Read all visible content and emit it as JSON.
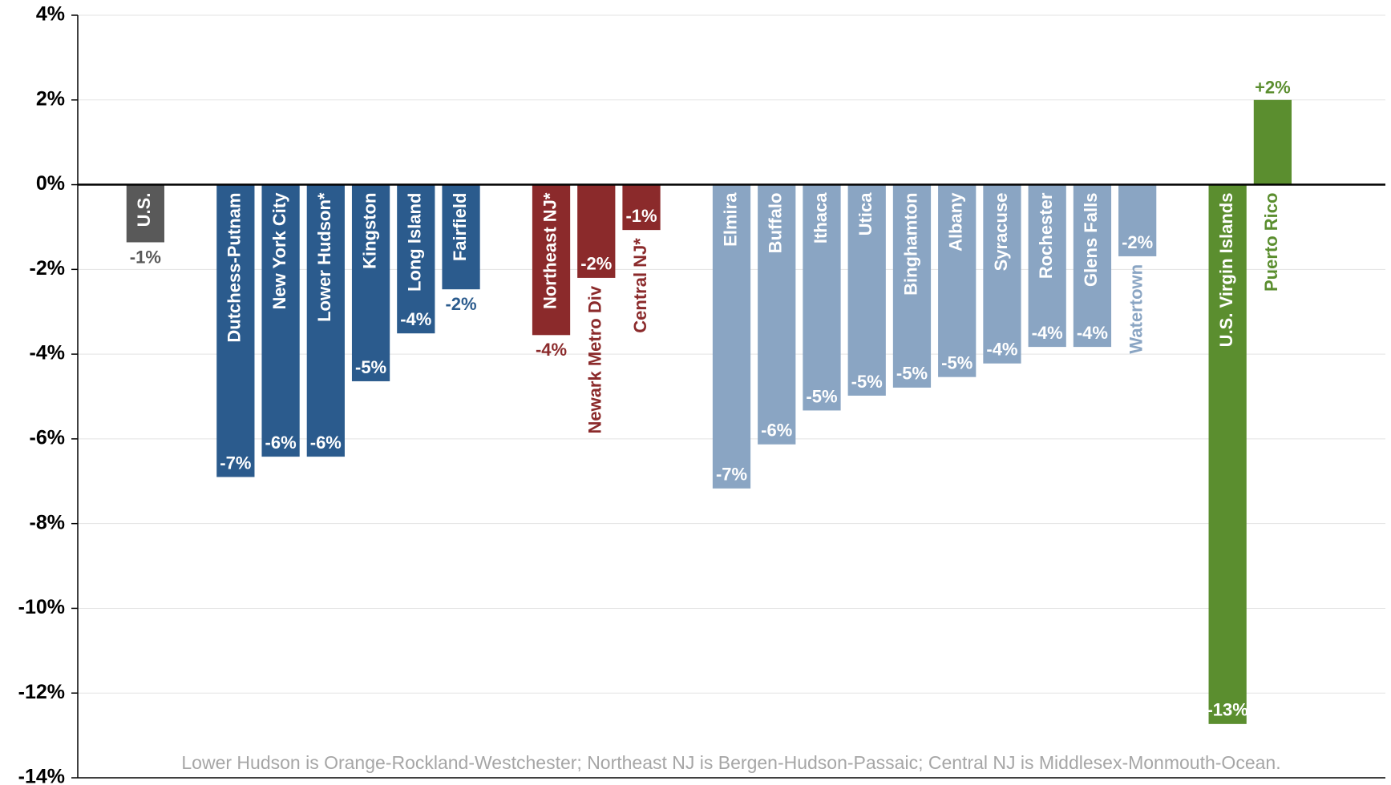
{
  "chart_data": {
    "type": "bar",
    "categories": [
      "U.S.",
      null,
      "Dutchess-Putnam",
      "New York City",
      "Lower Hudson*",
      "Kingston",
      "Long Island",
      "Fairfield",
      null,
      "Northeast NJ*",
      "Newark Metro Div",
      "Central NJ*",
      null,
      "Elmira",
      "Buffalo",
      "Ithaca",
      "Utica",
      "Binghamton",
      "Albany",
      "Syracuse",
      "Rochester",
      "Glens Falls",
      "Watertown",
      null,
      "U.S. Virgin Islands",
      "Puerto Rico"
    ],
    "values": [
      -1.36,
      null,
      -6.9,
      -6.42,
      -6.42,
      -4.64,
      -3.51,
      -2.47,
      null,
      -3.55,
      -2.2,
      -1.07,
      null,
      -7.17,
      -6.13,
      -5.33,
      -4.98,
      -4.79,
      -4.54,
      -4.22,
      -3.83,
      -3.83,
      -1.69,
      null,
      -12.73,
      2.0
    ],
    "value_labels": [
      "-1%",
      null,
      "-7%",
      "-6%",
      "-6%",
      "-5%",
      "-4%",
      "-2%",
      null,
      "-4%",
      "-2%",
      "-1%",
      null,
      "-7%",
      "-6%",
      "-5%",
      "-5%",
      "-5%",
      "-5%",
      "-4%",
      "-4%",
      "-4%",
      "-2%",
      null,
      "-13%",
      "+2%"
    ],
    "colors": [
      "#595959",
      null,
      "#2b5b8d",
      "#2b5b8d",
      "#2b5b8d",
      "#2b5b8d",
      "#2b5b8d",
      "#2b5b8d",
      null,
      "#8b2a2b",
      "#8b2a2b",
      "#8b2a2b",
      null,
      "#8aa5c3",
      "#8aa5c3",
      "#8aa5c3",
      "#8aa5c3",
      "#8aa5c3",
      "#8aa5c3",
      "#8aa5c3",
      "#8aa5c3",
      "#8aa5c3",
      "#8aa5c3",
      null,
      "#5b8e2f",
      "#5b8e2f"
    ],
    "ylim": [
      -14,
      4
    ],
    "yticks": [
      {
        "value": -14,
        "label": "-14%"
      },
      {
        "value": -12,
        "label": "-12%"
      },
      {
        "value": -10,
        "label": "-10%"
      },
      {
        "value": -8,
        "label": "-8%"
      },
      {
        "value": -6,
        "label": "-6%"
      },
      {
        "value": -4,
        "label": "-4%"
      },
      {
        "value": -2,
        "label": "-2%"
      },
      {
        "value": 0,
        "label": "0%"
      },
      {
        "value": 2,
        "label": "2%"
      },
      {
        "value": 4,
        "label": "4%"
      }
    ],
    "grid": true,
    "annotation": "Lower Hudson is Orange-Rockland-Westchester; Northeast NJ is Bergen-Hudson-Passaic; Central NJ is Middlesex-Monmouth-Ocean."
  }
}
